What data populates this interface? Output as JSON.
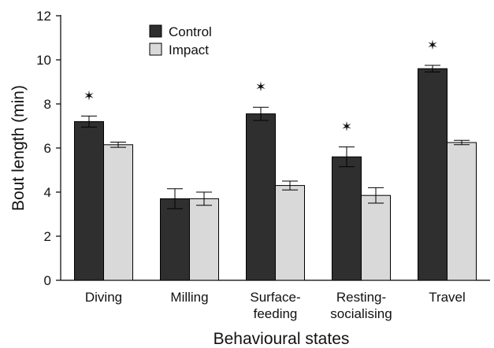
{
  "chart_data": {
    "type": "bar",
    "categories": [
      [
        "Diving"
      ],
      [
        "Milling"
      ],
      [
        "Surface-",
        "feeding"
      ],
      [
        "Resting-",
        "socialising"
      ],
      [
        "Travel"
      ]
    ],
    "series": [
      {
        "name": "Control",
        "color": "#2f2f2f",
        "values": [
          7.2,
          3.7,
          7.55,
          5.6,
          9.6
        ],
        "errors": [
          0.25,
          0.45,
          0.3,
          0.45,
          0.15
        ]
      },
      {
        "name": "Impact",
        "color": "#d9d9d9",
        "values": [
          6.15,
          3.7,
          4.3,
          3.85,
          6.25
        ],
        "errors": [
          0.12,
          0.3,
          0.2,
          0.35,
          0.1
        ]
      }
    ],
    "significance_marker": "✶",
    "significant": [
      true,
      false,
      true,
      true,
      true
    ],
    "xlabel": "Behavioural states",
    "ylabel": "Bout length (min)",
    "ylim": [
      0,
      12
    ],
    "yticks": [
      "0",
      "2",
      "4",
      "6",
      "8",
      "10",
      "12"
    ],
    "legend_position": "top-center",
    "grid": false
  }
}
